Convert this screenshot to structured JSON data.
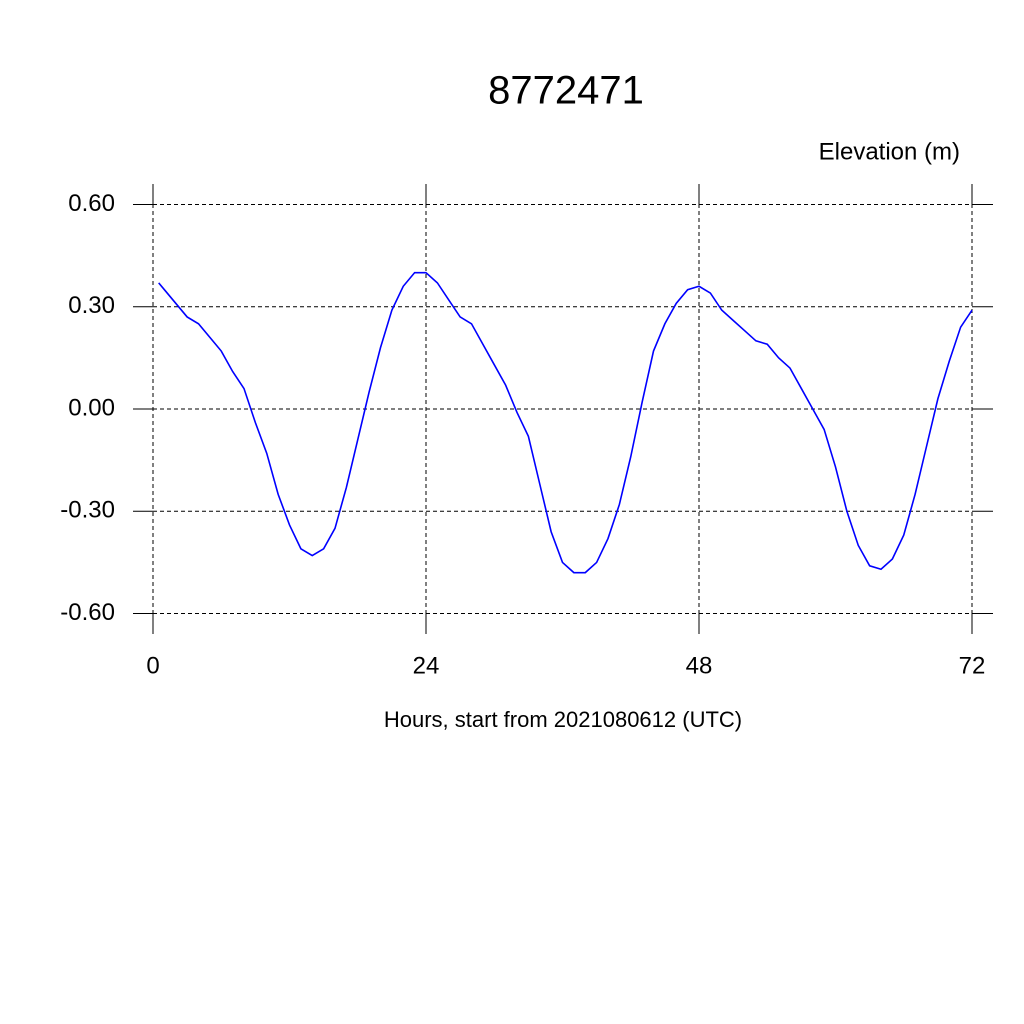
{
  "chart_data": {
    "type": "line",
    "title": "8772471",
    "y_label": "Elevation (m)",
    "x_label": "Hours, start from 2021080612 (UTC)",
    "x": [
      0.5,
      1,
      2,
      3,
      4,
      5,
      6,
      7,
      8,
      9,
      10,
      11,
      12,
      13,
      14,
      15,
      16,
      17,
      18,
      19,
      20,
      21,
      22,
      23,
      24,
      25,
      26,
      27,
      28,
      29,
      30,
      31,
      32,
      33,
      34,
      35,
      36,
      37,
      38,
      39,
      40,
      41,
      42,
      43,
      44,
      45,
      46,
      47,
      48,
      49,
      50,
      51,
      52,
      53,
      54,
      55,
      56,
      57,
      58,
      59,
      60,
      61,
      62,
      63,
      64,
      65,
      66,
      67,
      68,
      69,
      70,
      71,
      72
    ],
    "series": [
      {
        "color": "#0000ff",
        "values": [
          0.37,
          0.35,
          0.31,
          0.27,
          0.25,
          0.21,
          0.17,
          0.11,
          0.06,
          -0.04,
          -0.13,
          -0.25,
          -0.34,
          -0.41,
          -0.43,
          -0.41,
          -0.35,
          -0.23,
          -0.09,
          0.05,
          0.18,
          0.29,
          0.36,
          0.4,
          0.4,
          0.37,
          0.32,
          0.27,
          0.25,
          0.19,
          0.13,
          0.07,
          -0.01,
          -0.08,
          -0.22,
          -0.36,
          -0.45,
          -0.48,
          -0.48,
          -0.45,
          -0.38,
          -0.28,
          -0.14,
          0.02,
          0.17,
          0.25,
          0.31,
          0.35,
          0.36,
          0.34,
          0.29,
          0.26,
          0.23,
          0.2,
          0.19,
          0.15,
          0.12,
          0.06,
          0.0,
          -0.06,
          -0.17,
          -0.3,
          -0.4,
          -0.46,
          -0.47,
          -0.44,
          -0.37,
          -0.25,
          -0.11,
          0.03,
          0.14,
          0.24,
          0.29
        ]
      }
    ],
    "xlim": [
      0,
      72
    ],
    "xticks": [
      0,
      24,
      48,
      72
    ],
    "ylim": [
      -0.66,
      0.66
    ],
    "yticks": [
      {
        "value": -0.6,
        "label": "-0.60"
      },
      {
        "value": -0.3,
        "label": "-0.30"
      },
      {
        "value": 0,
        "label": "0.00"
      },
      {
        "value": 0.3,
        "label": "0.30"
      },
      {
        "value": 0.6,
        "label": "0.60"
      }
    ],
    "grid": true
  }
}
